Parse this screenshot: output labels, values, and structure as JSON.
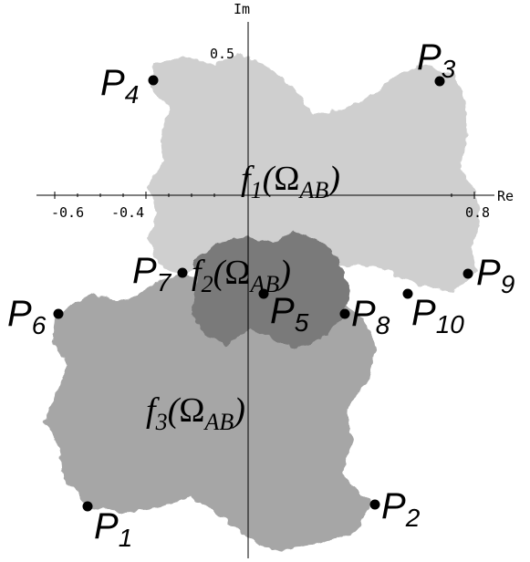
{
  "axes": {
    "horizontal_label": "Re",
    "vertical_label": "Im",
    "ticks_horizontal": [
      "-0.6",
      "-0.4",
      "0.8"
    ],
    "ticks_vertical": [
      "0.5"
    ]
  },
  "regions": [
    {
      "id": "f1",
      "func": "f",
      "index": "1",
      "omega": "Ω",
      "sub": "AB",
      "color": "#cfcfcf"
    },
    {
      "id": "f2",
      "func": "f",
      "index": "2",
      "omega": "Ω",
      "sub": "AB",
      "color": "#7a7a7a"
    },
    {
      "id": "f3",
      "func": "f",
      "index": "3",
      "omega": "Ω",
      "sub": "AB",
      "color": "#a6a6a6"
    }
  ],
  "points": [
    {
      "letter": "P",
      "index": "1"
    },
    {
      "letter": "P",
      "index": "2"
    },
    {
      "letter": "P",
      "index": "3"
    },
    {
      "letter": "P",
      "index": "4"
    },
    {
      "letter": "P",
      "index": "5"
    },
    {
      "letter": "P",
      "index": "6"
    },
    {
      "letter": "P",
      "index": "7"
    },
    {
      "letter": "P",
      "index": "8"
    },
    {
      "letter": "P",
      "index": "9"
    },
    {
      "letter": "P",
      "index": "10"
    }
  ],
  "colors": {
    "axis": "#000000",
    "point": "#000000"
  }
}
